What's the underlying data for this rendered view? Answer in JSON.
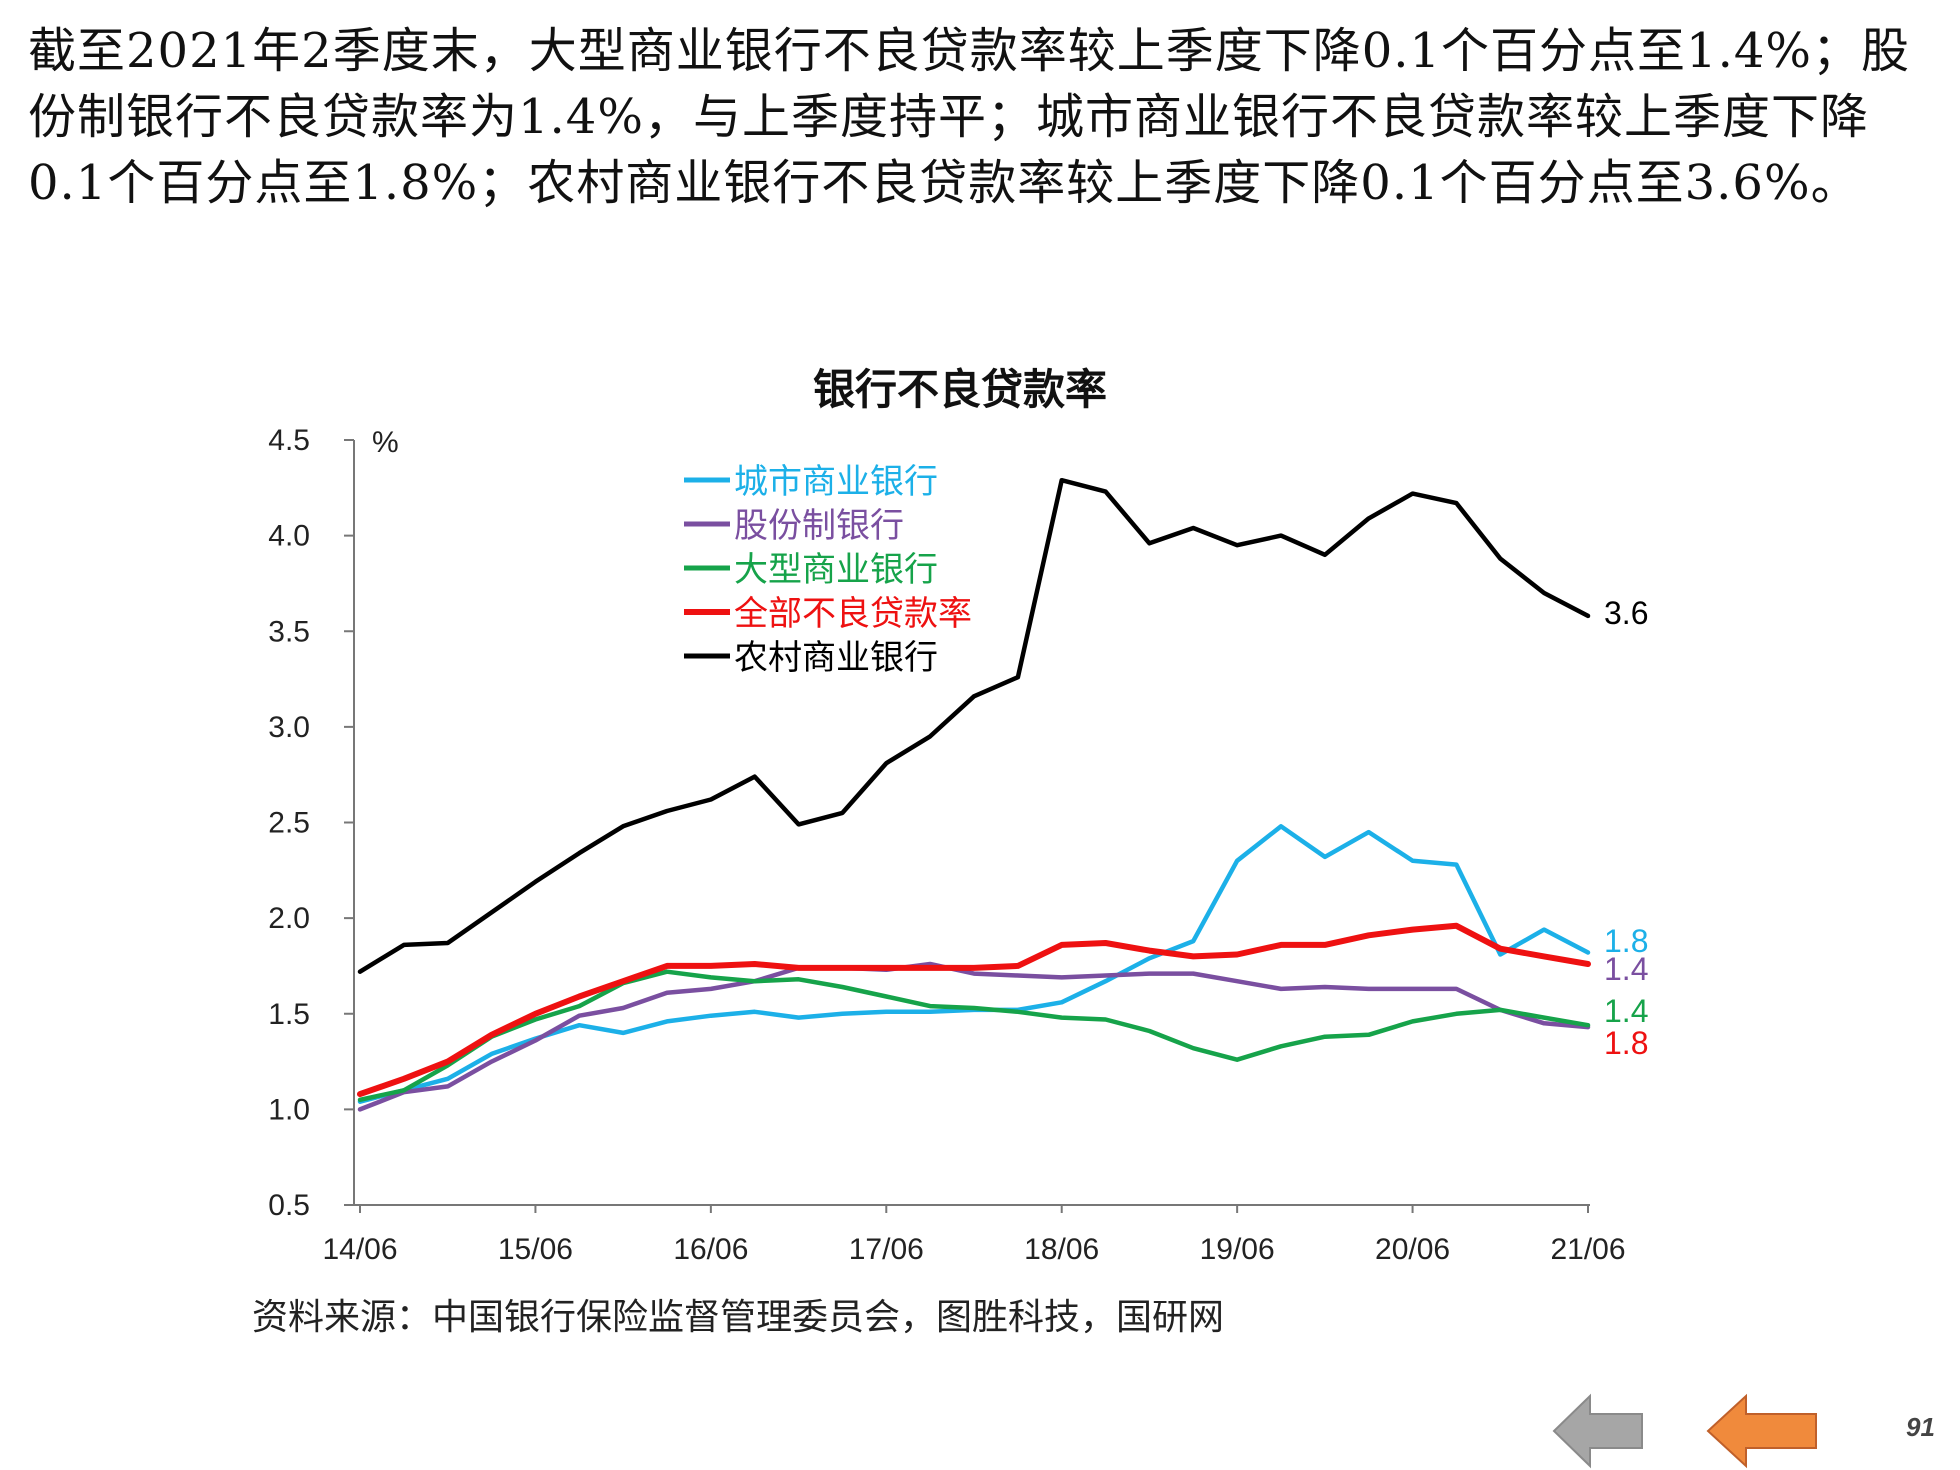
{
  "slide": {
    "intro_text": "截至2021年2季度末，大型商业银行不良贷款率较上季度下降0.1个百分点至1.4%；股份制银行不良贷款率为1.4%，与上季度持平；城市商业银行不良贷款率较上季度下降0.1个百分点至1.8%；农村商业银行不良贷款率较上季度下降0.1个百分点至3.6%。",
    "source": "资料来源：中国银行保险监督管理委员会，图胜科技，国研网",
    "page_number": "91",
    "nav": {
      "back_icon": "arrow-left-gray-icon",
      "prev_icon": "arrow-left-orange-icon"
    },
    "colors": {
      "back_arrow": "#a6a6a6",
      "prev_arrow": "#f08a3c"
    }
  },
  "chart_data": {
    "type": "line",
    "title": "银行不良贷款率",
    "ylabel": "%",
    "ylim": [
      0.5,
      4.5
    ],
    "yticks": [
      "0.5",
      "1.0",
      "1.5",
      "2.0",
      "2.5",
      "3.0",
      "3.5",
      "4.0",
      "4.5"
    ],
    "xticks": [
      "14/06",
      "15/06",
      "16/06",
      "17/06",
      "18/06",
      "19/06",
      "20/06",
      "21/06"
    ],
    "x": [
      "14/06",
      "14/09",
      "14/12",
      "15/03",
      "15/06",
      "15/09",
      "15/12",
      "16/03",
      "16/06",
      "16/09",
      "16/12",
      "17/03",
      "17/06",
      "17/09",
      "17/12",
      "18/03",
      "18/06",
      "18/09",
      "18/12",
      "19/03",
      "19/06",
      "19/09",
      "19/12",
      "20/03",
      "20/06",
      "20/09",
      "20/12",
      "21/03",
      "21/06"
    ],
    "grid": false,
    "legend": "top-left",
    "series": [
      {
        "name": "城市商业银行",
        "color": "#1cb0e8",
        "end_label": "1.8",
        "values": [
          1.04,
          1.1,
          1.16,
          1.29,
          1.37,
          1.44,
          1.4,
          1.46,
          1.49,
          1.51,
          1.48,
          1.5,
          1.51,
          1.51,
          1.52,
          1.52,
          1.56,
          1.67,
          1.79,
          1.88,
          2.3,
          2.48,
          2.32,
          2.45,
          2.3,
          2.28,
          1.81,
          1.94,
          1.82
        ]
      },
      {
        "name": "股份制银行",
        "color": "#7a4fa0",
        "end_label": "1.4",
        "values": [
          1.0,
          1.09,
          1.12,
          1.25,
          1.36,
          1.49,
          1.53,
          1.61,
          1.63,
          1.67,
          1.74,
          1.74,
          1.73,
          1.76,
          1.71,
          1.7,
          1.69,
          1.7,
          1.71,
          1.71,
          1.67,
          1.63,
          1.64,
          1.63,
          1.63,
          1.63,
          1.52,
          1.45,
          1.43
        ]
      },
      {
        "name": "大型商业银行",
        "color": "#16a34a",
        "end_label": "1.4",
        "values": [
          1.05,
          1.1,
          1.23,
          1.38,
          1.47,
          1.54,
          1.66,
          1.72,
          1.69,
          1.67,
          1.68,
          1.64,
          1.59,
          1.54,
          1.53,
          1.51,
          1.48,
          1.47,
          1.41,
          1.32,
          1.26,
          1.33,
          1.38,
          1.39,
          1.46,
          1.5,
          1.52,
          1.48,
          1.44
        ]
      },
      {
        "name": "全部不良贷款率",
        "color": "#ee1111",
        "end_label": "1.8",
        "values": [
          1.08,
          1.16,
          1.25,
          1.39,
          1.5,
          1.59,
          1.67,
          1.75,
          1.75,
          1.76,
          1.74,
          1.74,
          1.74,
          1.74,
          1.74,
          1.75,
          1.86,
          1.87,
          1.83,
          1.8,
          1.81,
          1.86,
          1.86,
          1.91,
          1.94,
          1.96,
          1.84,
          1.8,
          1.76
        ]
      },
      {
        "name": "农村商业银行",
        "color": "#000000",
        "end_label": "3.6",
        "values": [
          1.72,
          1.86,
          1.87,
          2.03,
          2.19,
          2.34,
          2.48,
          2.56,
          2.62,
          2.74,
          2.49,
          2.55,
          2.81,
          2.95,
          3.16,
          3.26,
          4.29,
          4.23,
          3.96,
          4.04,
          3.95,
          4.0,
          3.9,
          4.09,
          4.22,
          4.17,
          3.88,
          3.7,
          3.58
        ]
      }
    ]
  }
}
